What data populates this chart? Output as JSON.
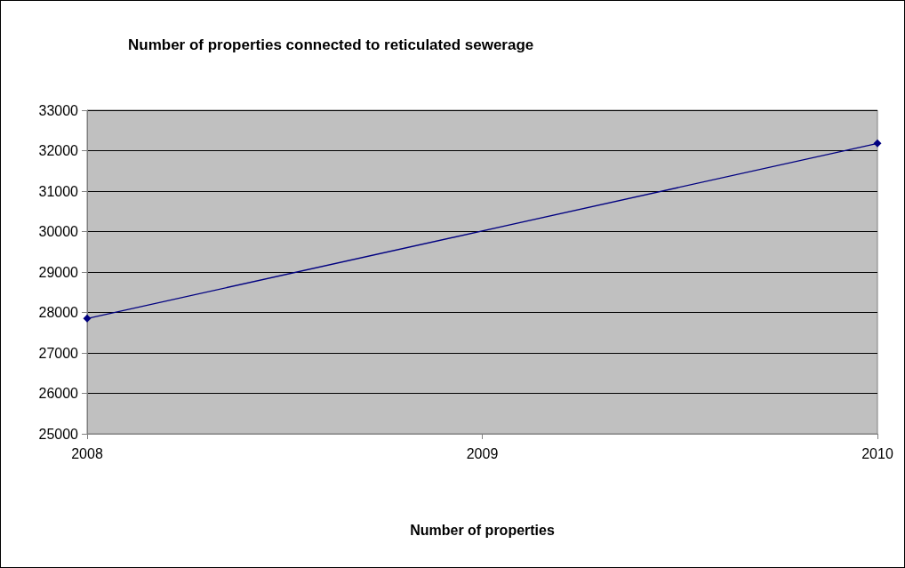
{
  "chart_data": {
    "type": "line",
    "title": "Number of properties connected to reticulated sewerage",
    "xlabel": "Number of properties",
    "x": [
      2008,
      2010
    ],
    "series": [
      {
        "color": "#000080",
        "values": [
          27850,
          32180
        ]
      }
    ],
    "xlim": [
      2008,
      2010
    ],
    "xticks": [
      2008,
      2009,
      2010
    ],
    "ylim": [
      25000,
      33000
    ],
    "yticks": [
      25000,
      26000,
      27000,
      28000,
      29000,
      30000,
      31000,
      32000,
      33000
    ],
    "grid": "y",
    "marker": "diamond",
    "line_style": "solid"
  }
}
